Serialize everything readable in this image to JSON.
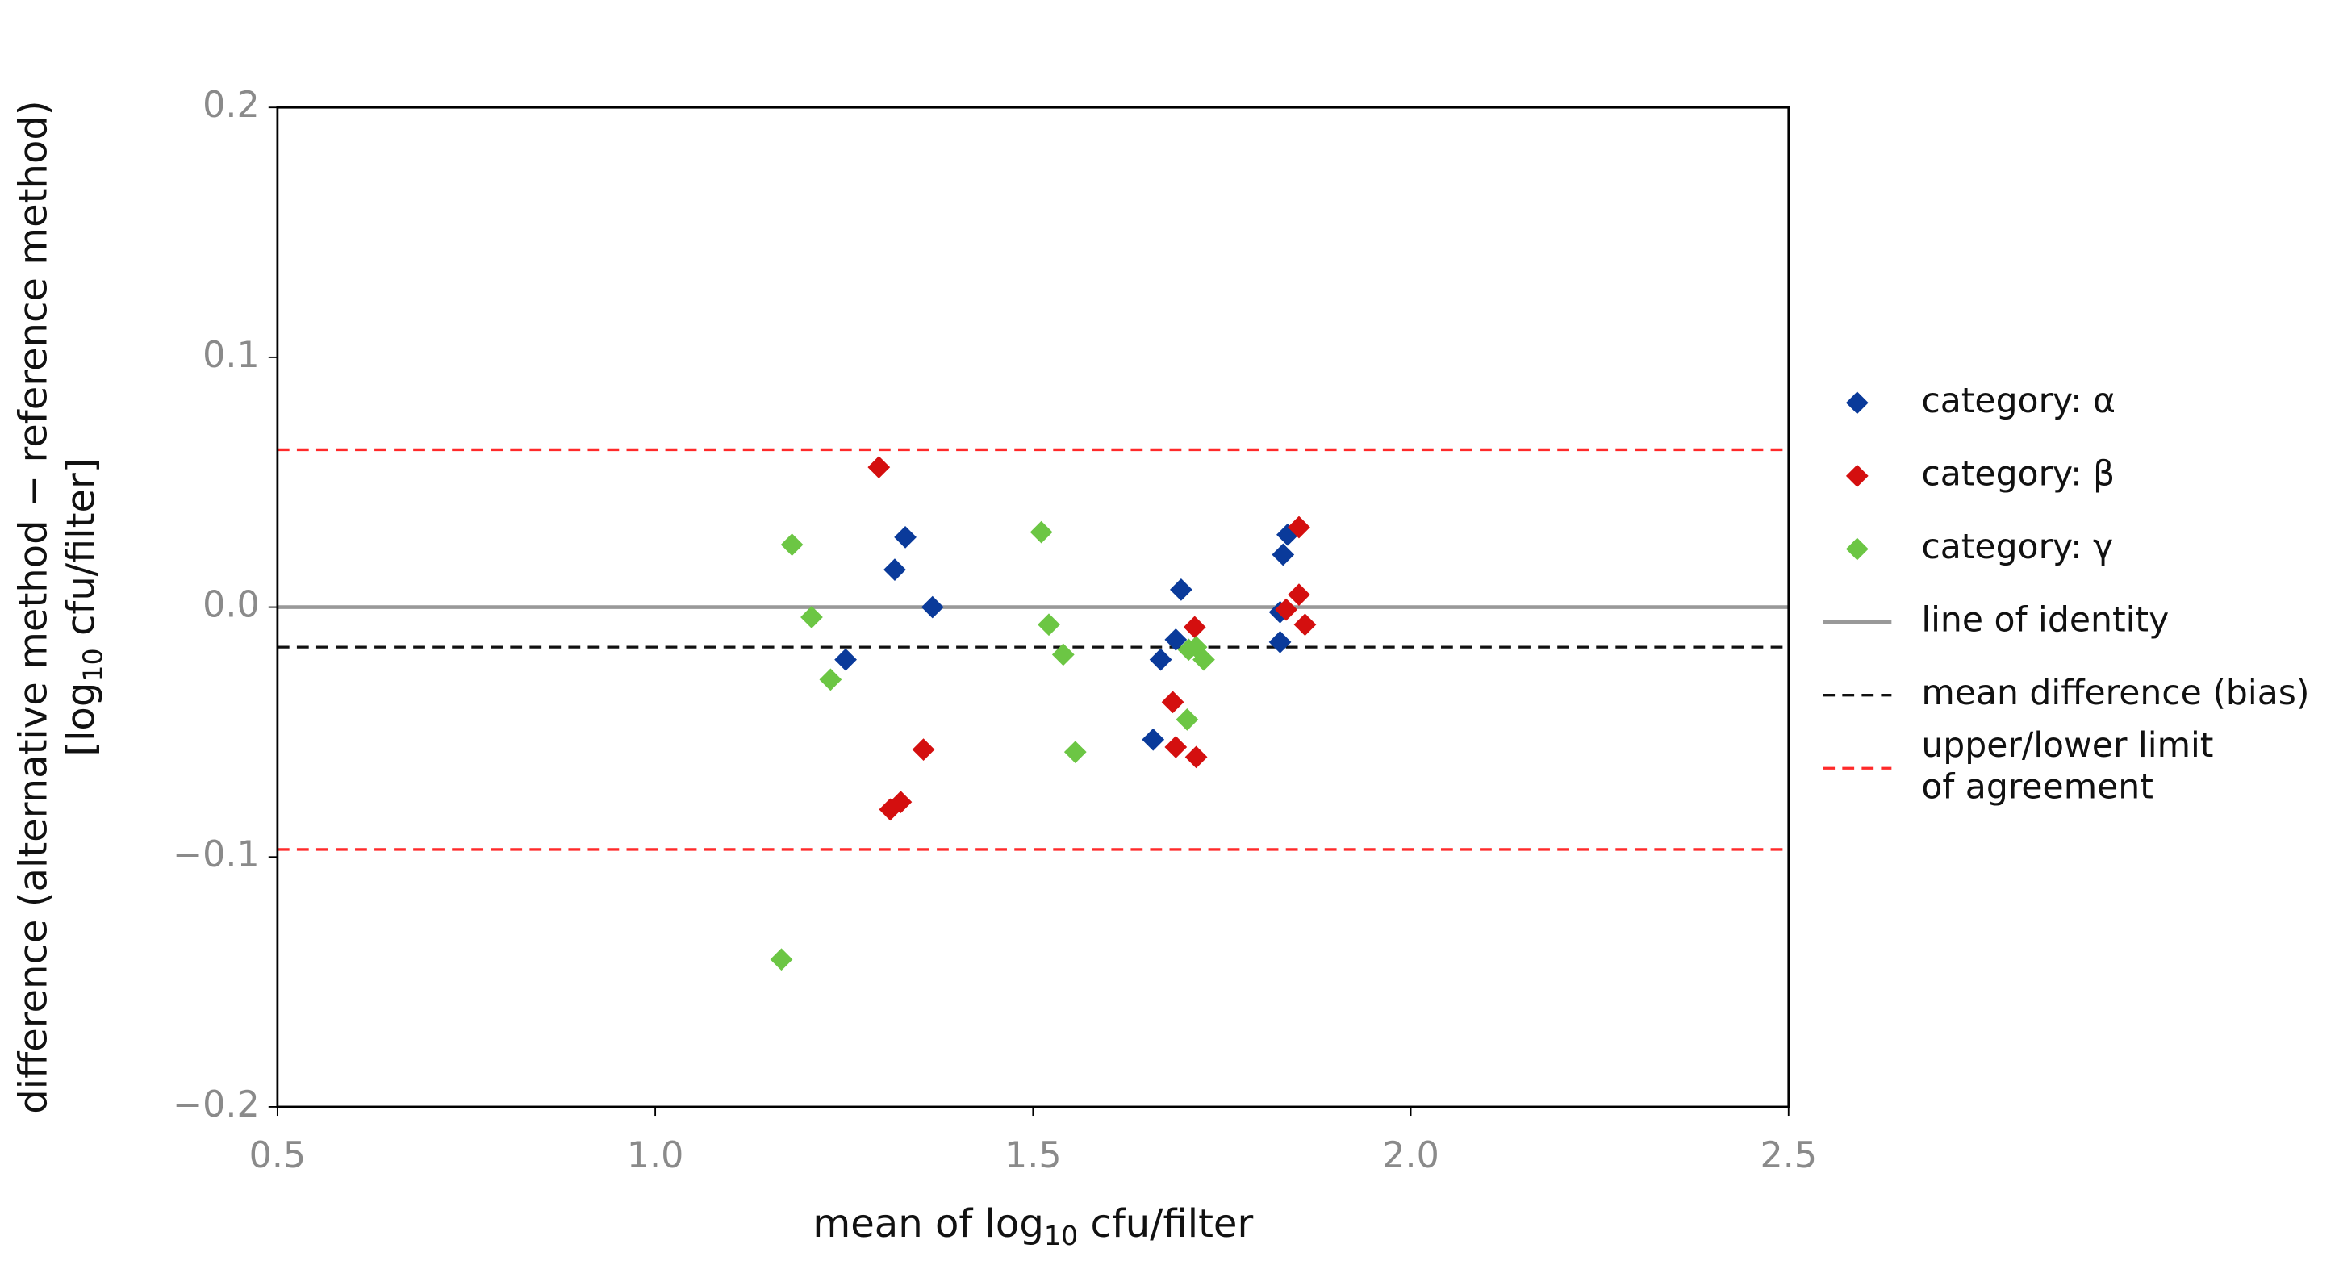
{
  "chart_data": {
    "type": "scatter",
    "x_label": [
      "mean of log",
      "10",
      " cfu/filter"
    ],
    "y_label": [
      "difference (alternative method − reference method)",
      [
        "[log",
        "10",
        " cfu/filter]"
      ]
    ],
    "xlim": [
      0.5,
      2.5
    ],
    "ylim": [
      -0.2,
      0.2
    ],
    "xticks": [
      0.5,
      {
        "value": 1.0,
        "label": "1.0"
      },
      1.5,
      {
        "value": 2.0,
        "label": "2.0"
      },
      2.5
    ],
    "yticks": [
      {
        "value": -0.2,
        "label": "−0.2"
      },
      {
        "value": -0.1,
        "label": "−0.1"
      },
      {
        "value": 0.0,
        "label": "0.0"
      },
      0.1,
      0.2
    ],
    "legend_position": "right",
    "series": [
      {
        "name": "category: α",
        "color": "#0a3a9a",
        "marker": "diamond",
        "x": [
          1.252,
          1.317,
          1.331,
          1.367,
          1.659,
          1.669,
          1.689,
          1.696,
          1.827,
          1.827,
          1.831,
          1.837
        ],
        "values": [
          -0.021,
          0.015,
          0.028,
          0.0,
          -0.053,
          -0.021,
          -0.013,
          0.007,
          -0.014,
          -0.002,
          0.021,
          0.029
        ]
      },
      {
        "name": "category: β",
        "color": "#d40f0f",
        "marker": "diamond",
        "x": [
          1.296,
          1.311,
          1.325,
          1.355,
          1.685,
          1.689,
          1.714,
          1.716,
          1.835,
          1.852,
          1.852,
          1.86
        ],
        "values": [
          0.056,
          -0.081,
          -0.078,
          -0.057,
          -0.038,
          -0.056,
          -0.008,
          -0.06,
          -0.001,
          0.032,
          0.005,
          -0.007
        ]
      },
      {
        "name": "category: γ",
        "color": "#6cc644",
        "marker": "diamond",
        "x": [
          1.167,
          1.181,
          1.207,
          1.232,
          1.511,
          1.521,
          1.54,
          1.556,
          1.704,
          1.706,
          1.716,
          1.726
        ],
        "values": [
          -0.141,
          0.025,
          -0.004,
          -0.029,
          0.03,
          -0.007,
          -0.019,
          -0.058,
          -0.045,
          -0.017,
          -0.016,
          -0.021
        ]
      }
    ],
    "reference_lines": [
      {
        "name": [
          "line of identity"
        ],
        "color": "#999999",
        "dash": "solid",
        "values": [
          0.0
        ]
      },
      {
        "name": [
          "mean difference (bias)"
        ],
        "color": "#111111",
        "dash": "dashed",
        "values": [
          -0.016
        ]
      },
      {
        "name": [
          "upper/lower limit",
          "of agreement"
        ],
        "color": "#ff2a2a",
        "dash": "dashed",
        "values": [
          0.063,
          -0.097
        ]
      }
    ]
  }
}
